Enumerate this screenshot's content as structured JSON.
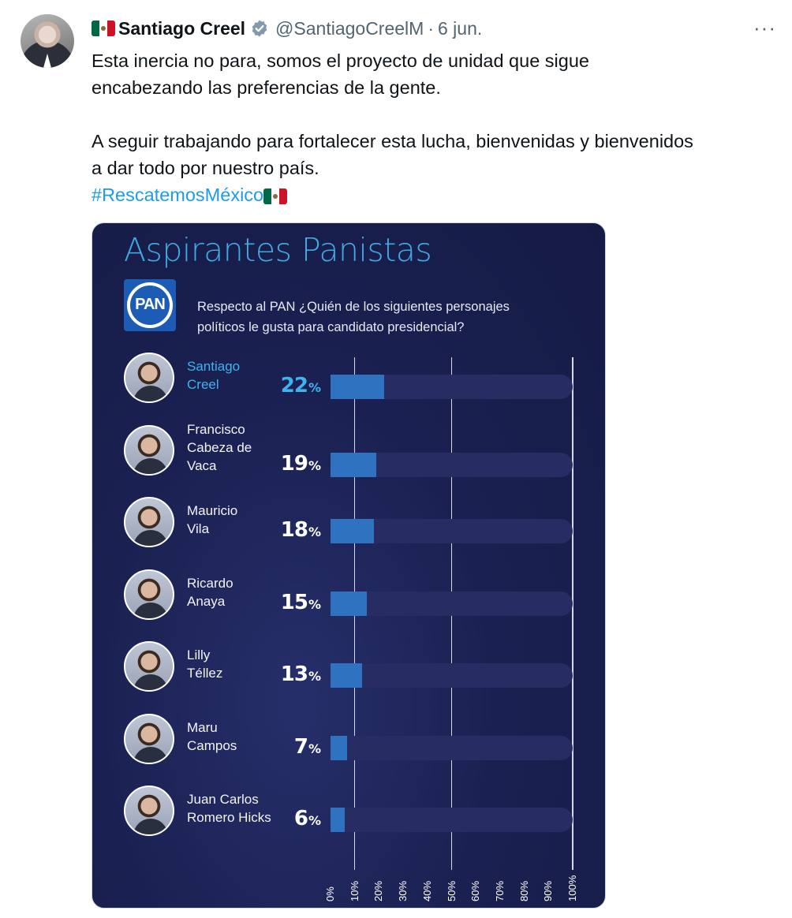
{
  "tweet": {
    "author_name": "Santiago Creel",
    "handle": "@SantiagoCreelM",
    "separator": "·",
    "date": "6 jun.",
    "more": "···",
    "lines": [
      "Esta inercia no para, somos el proyecto de unidad que sigue",
      "encabezando las preferencias de la gente.",
      "",
      "A seguir trabajando para fortalecer esta lucha, bienvenidas y bienvenidos",
      "a dar todo por nuestro país."
    ],
    "hashtag": "#RescatemosMéxico",
    "icons": {
      "avatar": "author-avatar",
      "flag": "mexico-flag-icon",
      "verified": "verified-badge-icon",
      "more": "more-options-icon"
    }
  },
  "media": {
    "logo_text": "PAN",
    "question_line1": "Respecto al PAN ¿Quién de los siguientes personajes",
    "question_line2": "políticos le gusta para candidato presidencial?",
    "colors": {
      "background": "#1a2152",
      "bar": "#2f72bf",
      "track": "#272d62",
      "highlight": "#3fb3f0"
    }
  },
  "chart_data": {
    "type": "bar",
    "orientation": "horizontal",
    "title": "Aspirantes Panistas",
    "categories": [
      [
        "Santiago",
        "Creel"
      ],
      [
        "Francisco",
        "Cabeza de",
        "Vaca"
      ],
      [
        "Mauricio",
        "Vila"
      ],
      [
        "Ricardo",
        "Anaya"
      ],
      [
        "Lilly",
        "Téllez"
      ],
      [
        "Maru",
        "Campos"
      ],
      [
        "Juan Carlos",
        "Romero Hicks"
      ]
    ],
    "values": [
      22,
      19,
      18,
      15,
      13,
      7,
      6
    ],
    "value_suffix": "%",
    "highlight_index": 0,
    "xlim": [
      0,
      100
    ],
    "x_ticks": [
      "0%",
      "10%",
      "20%",
      "30%",
      "40%",
      "50%",
      "60%",
      "70%",
      "80%",
      "90%",
      "100%"
    ],
    "gridlines_at": [
      10,
      50,
      100
    ],
    "grid": true,
    "legend": "none"
  }
}
